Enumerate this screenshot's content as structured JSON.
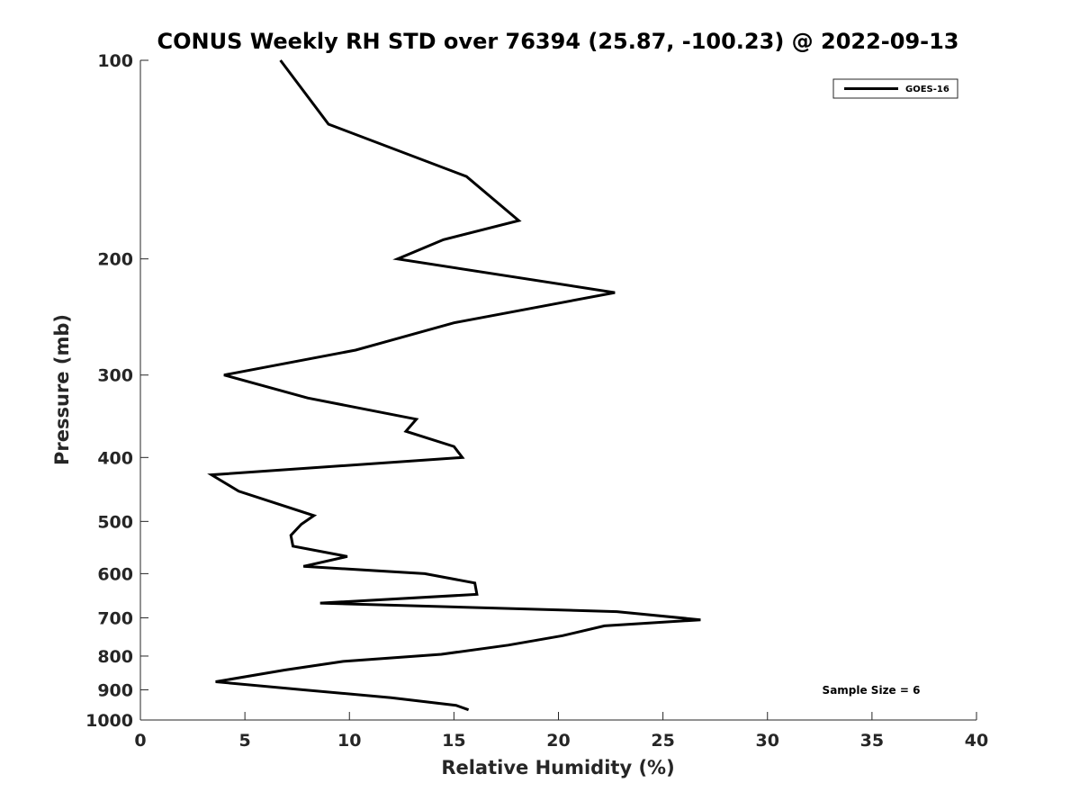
{
  "chart_data": {
    "type": "line",
    "title": "CONUS Weekly RH STD over 76394 (25.87, -100.23) @ 2022-09-13",
    "xlabel": "Relative Humidity (%)",
    "ylabel": "Pressure (mb)",
    "xlim": [
      0,
      40
    ],
    "ylim": [
      100,
      1000
    ],
    "y_scale": "log",
    "y_reversed": true,
    "x_ticks": [
      0,
      5,
      10,
      15,
      20,
      25,
      30,
      35,
      40
    ],
    "y_ticks": [
      100,
      200,
      300,
      400,
      500,
      600,
      700,
      800,
      900,
      1000
    ],
    "grid": false,
    "legend_position": "top-right",
    "series": [
      {
        "name": "GOES-16",
        "color": "#000000",
        "points": [
          {
            "rh": 6.7,
            "p": 100
          },
          {
            "rh": 9.0,
            "p": 125
          },
          {
            "rh": 15.6,
            "p": 150
          },
          {
            "rh": 18.1,
            "p": 175
          },
          {
            "rh": 14.5,
            "p": 187
          },
          {
            "rh": 12.3,
            "p": 200
          },
          {
            "rh": 22.7,
            "p": 225
          },
          {
            "rh": 15.0,
            "p": 250
          },
          {
            "rh": 10.3,
            "p": 275
          },
          {
            "rh": 4.0,
            "p": 300
          },
          {
            "rh": 8.0,
            "p": 325
          },
          {
            "rh": 13.2,
            "p": 350
          },
          {
            "rh": 12.7,
            "p": 365
          },
          {
            "rh": 15.0,
            "p": 385
          },
          {
            "rh": 15.4,
            "p": 400
          },
          {
            "rh": 3.4,
            "p": 425
          },
          {
            "rh": 4.7,
            "p": 450
          },
          {
            "rh": 8.3,
            "p": 490
          },
          {
            "rh": 7.7,
            "p": 505
          },
          {
            "rh": 7.2,
            "p": 525
          },
          {
            "rh": 7.3,
            "p": 545
          },
          {
            "rh": 9.9,
            "p": 565
          },
          {
            "rh": 7.8,
            "p": 585
          },
          {
            "rh": 13.6,
            "p": 600
          },
          {
            "rh": 16.0,
            "p": 620
          },
          {
            "rh": 16.1,
            "p": 645
          },
          {
            "rh": 8.6,
            "p": 665
          },
          {
            "rh": 22.8,
            "p": 685
          },
          {
            "rh": 26.8,
            "p": 705
          },
          {
            "rh": 22.2,
            "p": 720
          },
          {
            "rh": 20.2,
            "p": 745
          },
          {
            "rh": 17.6,
            "p": 770
          },
          {
            "rh": 14.4,
            "p": 795
          },
          {
            "rh": 9.7,
            "p": 815
          },
          {
            "rh": 6.9,
            "p": 840
          },
          {
            "rh": 3.6,
            "p": 875
          },
          {
            "rh": 7.8,
            "p": 900
          },
          {
            "rh": 12.0,
            "p": 925
          },
          {
            "rh": 15.1,
            "p": 950
          },
          {
            "rh": 15.7,
            "p": 965
          }
        ]
      }
    ],
    "annotations": [
      "Sample Size = 6"
    ]
  }
}
